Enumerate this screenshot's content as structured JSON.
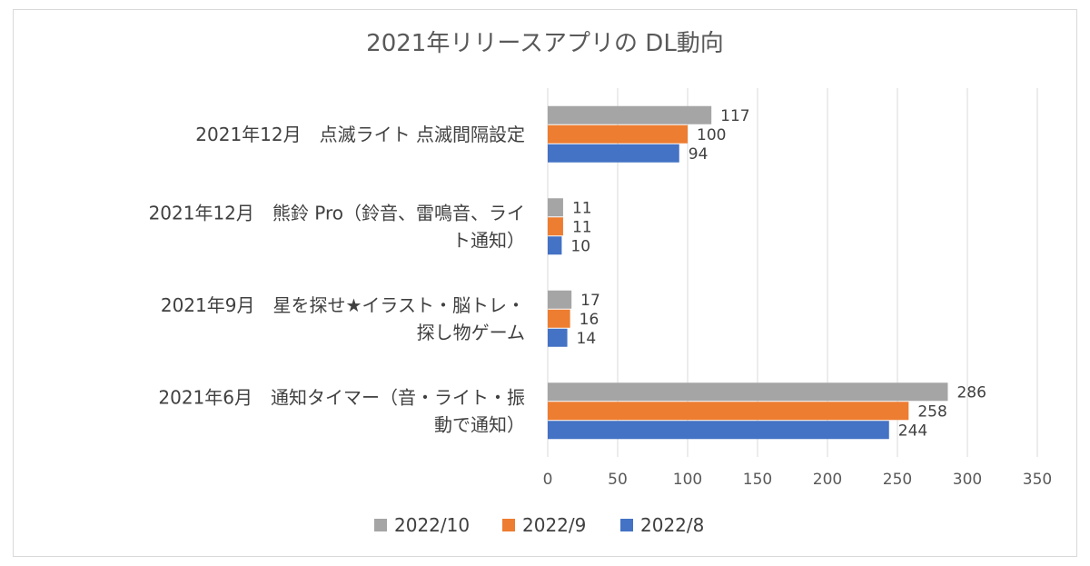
{
  "chart_data": {
    "type": "bar",
    "orientation": "horizontal",
    "title": "2021年リリースアプリの DL動向",
    "categories": [
      [
        "2021年12月　点滅ライト 点滅間隔設定"
      ],
      [
        "2021年12月　熊鈴 Pro（鈴音、雷鳴音、ライ",
        "ト通知）"
      ],
      [
        "2021年9月　星を探せ★イラスト・脳トレ・",
        "探し物ゲーム"
      ],
      [
        "2021年6月　通知タイマー（音・ライト・振",
        "動で通知）"
      ]
    ],
    "series": [
      {
        "name": "2022/10",
        "color": "#a5a5a5",
        "values": [
          117,
          11,
          17,
          286
        ]
      },
      {
        "name": "2022/9",
        "color": "#ed7d31",
        "values": [
          100,
          11,
          16,
          258
        ]
      },
      {
        "name": "2022/8",
        "color": "#4472c4",
        "values": [
          94,
          10,
          14,
          244
        ]
      }
    ],
    "xlim": [
      0,
      350
    ],
    "xticks": [
      "0",
      "50",
      "100",
      "150",
      "200",
      "250",
      "300",
      "350"
    ],
    "xlabel": "",
    "ylabel": "",
    "grid": true,
    "legend": "bottom"
  }
}
